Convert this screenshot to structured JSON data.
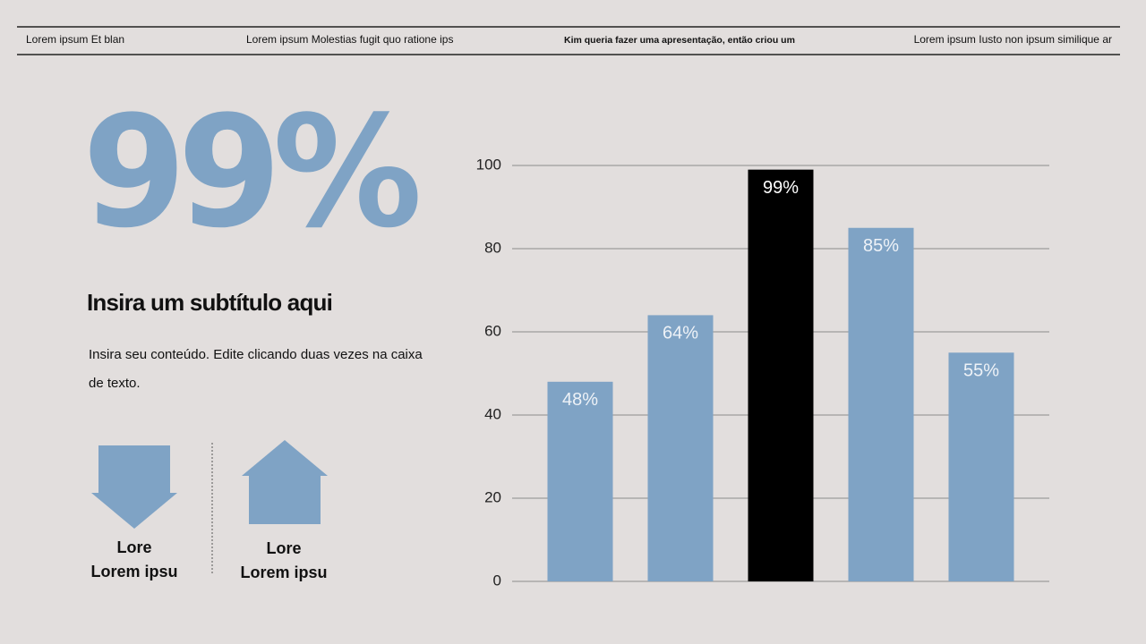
{
  "header": {
    "items": [
      "Lorem ipsum Et blan",
      "Lorem ipsum Molestias fugit quo ratione ips",
      "Kim queria fazer uma apresentação, então criou um",
      "Lorem ipsum Iusto non ipsum similique ar"
    ]
  },
  "hero": {
    "stat": "99%",
    "subtitle": "Insira um subtítulo aqui",
    "body": [
      "Insira seu conteúdo. Edite clicando duas vezes na caixa",
      "de texto."
    ]
  },
  "icons": [
    {
      "label": [
        "Lore",
        "Lorem ipsu"
      ]
    },
    {
      "label": [
        "Lore",
        "Lorem ipsu"
      ]
    }
  ],
  "chart_data": {
    "type": "bar",
    "categories": [
      null,
      null,
      null,
      null,
      null
    ],
    "values": [
      48,
      64,
      99,
      85,
      55
    ],
    "value_labels": [
      "48%",
      "64%",
      "99%",
      "85%",
      "55%"
    ],
    "colors": [
      "#7fa3c5",
      "#7fa3c5",
      "#000000",
      "#7fa3c5",
      "#7fa3c5"
    ],
    "ylim": [
      0,
      100
    ],
    "yticks": [
      0,
      20,
      40,
      60,
      80,
      100
    ],
    "grid": true
  }
}
